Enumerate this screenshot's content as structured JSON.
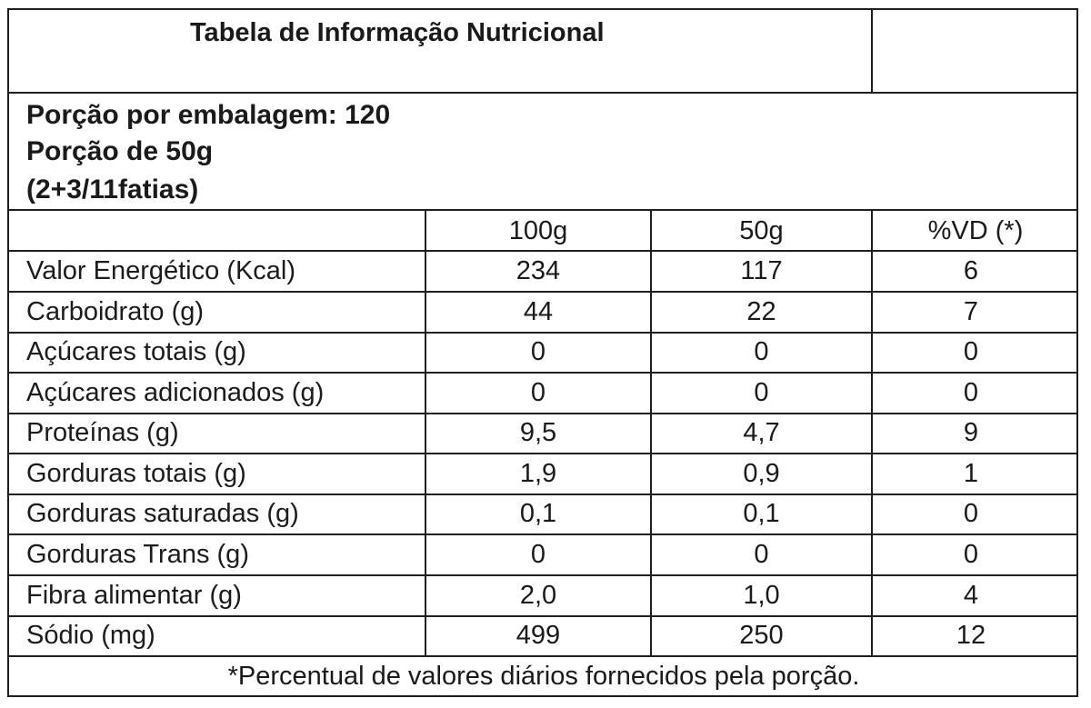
{
  "table": {
    "title": "Tabela de Informação Nutricional",
    "servings_per_package": "Porção por embalagem: 120",
    "serving_size": "Porção de 50g",
    "serving_slices": "(2+3/11fatias)",
    "columns": [
      "100g",
      "50g",
      "%VD (*)"
    ],
    "rows": [
      {
        "name": "Valor Energético (Kcal)",
        "per100": "234",
        "per50": "117",
        "vd": "6"
      },
      {
        "name": "Carboidrato (g)",
        "per100": "44",
        "per50": "22",
        "vd": "7"
      },
      {
        "name": "Açúcares totais (g)",
        "per100": "0",
        "per50": "0",
        "vd": "0"
      },
      {
        "name": "Açúcares adicionados (g)",
        "per100": "0",
        "per50": "0",
        "vd": "0"
      },
      {
        "name": "Proteínas (g)",
        "per100": "9,5",
        "per50": "4,7",
        "vd": "9"
      },
      {
        "name": "Gorduras totais (g)",
        "per100": "1,9",
        "per50": "0,9",
        "vd": "1"
      },
      {
        "name": "Gorduras saturadas (g)",
        "per100": "0,1",
        "per50": "0,1",
        "vd": "0"
      },
      {
        "name": "Gorduras Trans (g)",
        "per100": "0",
        "per50": "0",
        "vd": "0"
      },
      {
        "name": "Fibra alimentar (g)",
        "per100": "2,0",
        "per50": "1,0",
        "vd": "4"
      },
      {
        "name": "Sódio (mg)",
        "per100": "499",
        "per50": "250",
        "vd": "12"
      }
    ],
    "footnote": "*Percentual de valores diários fornecidos pela porção."
  }
}
